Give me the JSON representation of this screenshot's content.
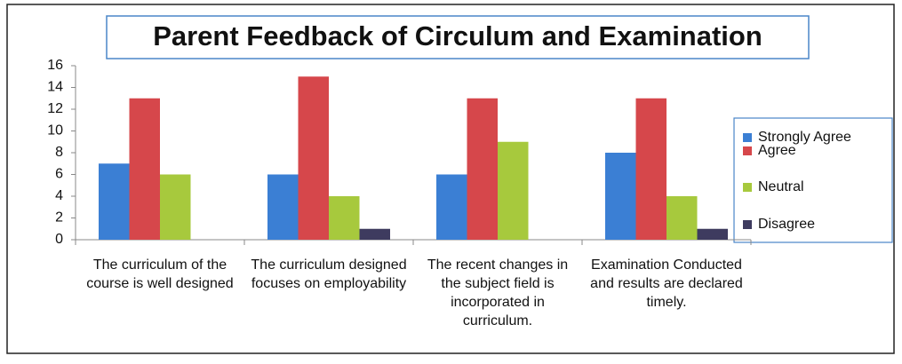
{
  "chart_data": {
    "type": "bar",
    "title": "Parent Feedback of Circulum and Examination",
    "categories": [
      "The curriculum of the course is well designed",
      "The curriculum designed focuses on employability",
      "The recent changes in the subject field is incorporated in curriculum.",
      "Examination Conducted and results are declared timely."
    ],
    "series": [
      {
        "name": "Strongly Agree",
        "color": "#3b7fd4",
        "values": [
          7,
          6,
          6,
          8
        ]
      },
      {
        "name": "Agree",
        "color": "#d6474b",
        "values": [
          13,
          15,
          13,
          13
        ]
      },
      {
        "name": "Neutral",
        "color": "#a7c93d",
        "values": [
          6,
          4,
          9,
          4
        ]
      },
      {
        "name": "Disagree",
        "color": "#3e3b5f",
        "values": [
          0,
          1,
          0,
          1
        ]
      }
    ],
    "ylim": [
      0,
      16
    ],
    "yticks": [
      0,
      2,
      4,
      6,
      8,
      10,
      12,
      14,
      16
    ],
    "grid": false,
    "legend": "right"
  }
}
